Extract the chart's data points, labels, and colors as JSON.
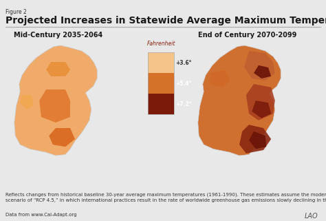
{
  "figure_label": "Figure 2",
  "title": "Projected Increases in Statewide Average Maximum Temperatures",
  "subtitle_left": "Mid-Century 2035-2064",
  "subtitle_right": "End of Century 2070-2099",
  "legend_title": "Fahrenheit",
  "legend_items": [
    "+3.6°",
    "+5.4°",
    "+7.2°"
  ],
  "legend_colors": [
    "#F5C78A",
    "#D4722A",
    "#7A1A0A"
  ],
  "bg_color": "#E8E8E8",
  "footer_text": "Reflects changes from historical baseline 30-year average maximum temperatures (1961-1990). These estimates assume the moderate climate change\nscenario of “RCP 4.5,” in which international practices result in the rate of worldwide greenhouse gas emissions slowly declining in the coming decades.",
  "data_source": "Data from www.Cal-Adapt.org",
  "watermark": "LAO",
  "title_fontsize": 10,
  "label_fontsize": 6.5,
  "footer_fontsize": 5.0,
  "map_colors_left": [
    "#F5C48A",
    "#E8953A",
    "#D4722A",
    "#C85A1A"
  ],
  "map_colors_right": [
    "#E8953A",
    "#C85A1A",
    "#8B2010",
    "#5A0A00"
  ]
}
